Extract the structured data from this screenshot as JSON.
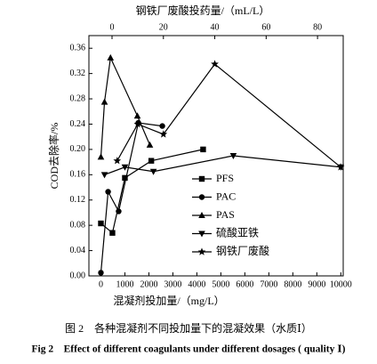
{
  "chart_data": {
    "type": "line",
    "title": "图 2　各种混凝剂不同投加量下的混凝效果（水质Ⅰ）",
    "subtitle": "Fig 2　Effect of different coagulants under different dosages ( quality Ⅰ)",
    "x_label": "混凝剂投加量/（mg/L）",
    "x2_label": "钢铁厂废酸投药量/（mL/L）",
    "y_label": "COD去除率/%",
    "xlim": [
      -500,
      10100
    ],
    "xticks": [
      0,
      1000,
      2000,
      3000,
      4000,
      5000,
      6000,
      7000,
      8000,
      9000,
      10000
    ],
    "x2lim": [
      -9,
      90
    ],
    "x2ticks": [
      0,
      20,
      40,
      60,
      80
    ],
    "ylim": [
      0,
      0.38
    ],
    "yticks": [
      {
        "value": 0,
        "label": "0.00"
      },
      {
        "value": 0.04,
        "label": "0.04"
      },
      {
        "value": 0.08,
        "label": "0.08"
      },
      {
        "value": 0.12,
        "label": "0.12"
      },
      {
        "value": 0.16,
        "label": "0.16"
      },
      {
        "value": 0.2,
        "label": "0.20"
      },
      {
        "value": 0.24,
        "label": "0.24"
      },
      {
        "value": 0.28,
        "label": "0.28"
      },
      {
        "value": 0.32,
        "label": "0.32"
      },
      {
        "value": 0.36,
        "label": "0.36"
      }
    ],
    "legend": "lower right",
    "series": [
      {
        "name": "PFS",
        "color": "#000000",
        "marker": "square",
        "x": [
          0,
          480,
          1000,
          2100,
          4260
        ],
        "values": [
          0.083,
          0.068,
          0.155,
          0.182,
          0.2
        ]
      },
      {
        "name": "PAC",
        "color": "#000000",
        "marker": "circle",
        "x": [
          0,
          300,
          740,
          1560,
          2560
        ],
        "values": [
          0.005,
          0.133,
          0.102,
          0.242,
          0.237
        ]
      },
      {
        "name": "PAS",
        "color": "#000000",
        "marker": "triangle-up",
        "x": [
          0,
          150,
          400,
          1520,
          2040
        ],
        "values": [
          0.188,
          0.275,
          0.345,
          0.253,
          0.207
        ]
      },
      {
        "name": "硫酸亚铁",
        "color": "#000000",
        "marker": "triangle-down",
        "x": [
          150,
          1000,
          2190,
          5520,
          10000
        ],
        "values": [
          0.16,
          0.172,
          0.165,
          0.19,
          0.172
        ]
      },
      {
        "name": "钢铁厂废酸",
        "color": "#000000",
        "marker": "star",
        "axis": "x2",
        "x": [
          2,
          10,
          20,
          40,
          89
        ],
        "values": [
          0.182,
          0.24,
          0.224,
          0.335,
          0.172
        ]
      }
    ]
  }
}
